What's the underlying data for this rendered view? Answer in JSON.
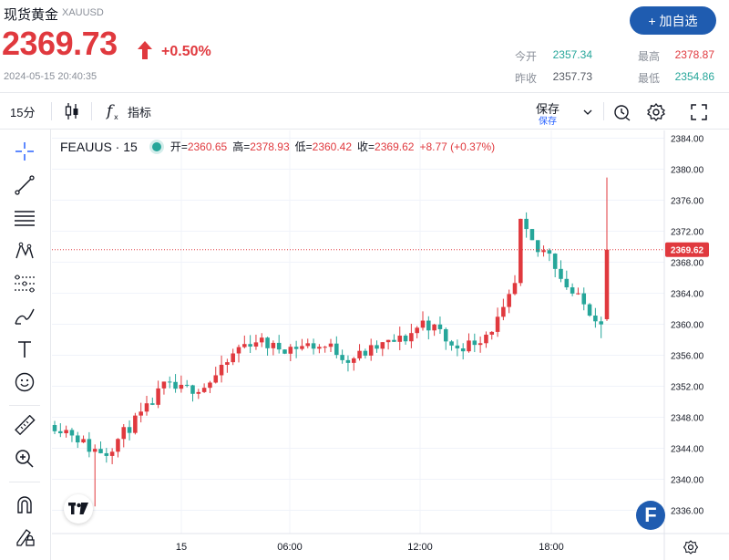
{
  "header": {
    "title": "现货黄金",
    "symbol": "XAUUSD",
    "price": "2369.73",
    "change": "+0.50%",
    "timestamp": "2024-05-15 20:40:35",
    "add_button": "+ 加自选",
    "stats": {
      "open_label": "今开",
      "open_value": "2357.34",
      "high_label": "最高",
      "high_value": "2378.87",
      "prev_close_label": "昨收",
      "prev_close_value": "2357.73",
      "low_label": "最低",
      "low_value": "2354.86"
    },
    "colors": {
      "up": "#e0393e",
      "down": "#26a69a",
      "accent": "#1f5cb0"
    }
  },
  "toolbar": {
    "interval": "15分",
    "indicators_label": "指标",
    "save_label": "保存",
    "save_sub": "保存",
    "icons": [
      "candles-icon",
      "function-icon",
      "chevron-down-icon",
      "alert-icon",
      "settings-icon",
      "fullscreen-icon"
    ]
  },
  "left_tools": [
    "crosshair-icon",
    "trendline-icon",
    "fib-lines-icon",
    "pattern-icon",
    "pitchfork-icon",
    "brush-icon",
    "text-icon",
    "emoji-icon",
    "ruler-icon",
    "zoom-in-icon",
    "magnet-icon",
    "pencil-lock-icon"
  ],
  "legend": {
    "symbol": "FEAUUS · 15",
    "open_label": "开=",
    "open_value": "2360.65",
    "high_label": "高=",
    "high_value": "2378.93",
    "low_label": "低=",
    "low_value": "2360.42",
    "close_label": "收=",
    "close_value": "2369.62",
    "change_value": "+8.77 (+0.37%)"
  },
  "badges": {
    "logo_letter": "F"
  },
  "chart_data": {
    "type": "candlestick",
    "instrument": "FEAUUS",
    "interval": "15",
    "ylim": [
      2333,
      2385
    ],
    "y_ticks": [
      "2384.00",
      "2380.00",
      "2376.00",
      "2372.00",
      "2368.00",
      "2364.00",
      "2360.00",
      "2356.00",
      "2352.00",
      "2348.00",
      "2344.00",
      "2340.00",
      "2336.00"
    ],
    "x_ticks": [
      "15",
      "06:00",
      "12:00",
      "18:00"
    ],
    "last_price_label": "2369.62",
    "last_price": 2369.62,
    "series_notes": "Per-bar OHLC values are not printed; the candle series below is approximated from the visual shape.",
    "candles_count": 81
  }
}
